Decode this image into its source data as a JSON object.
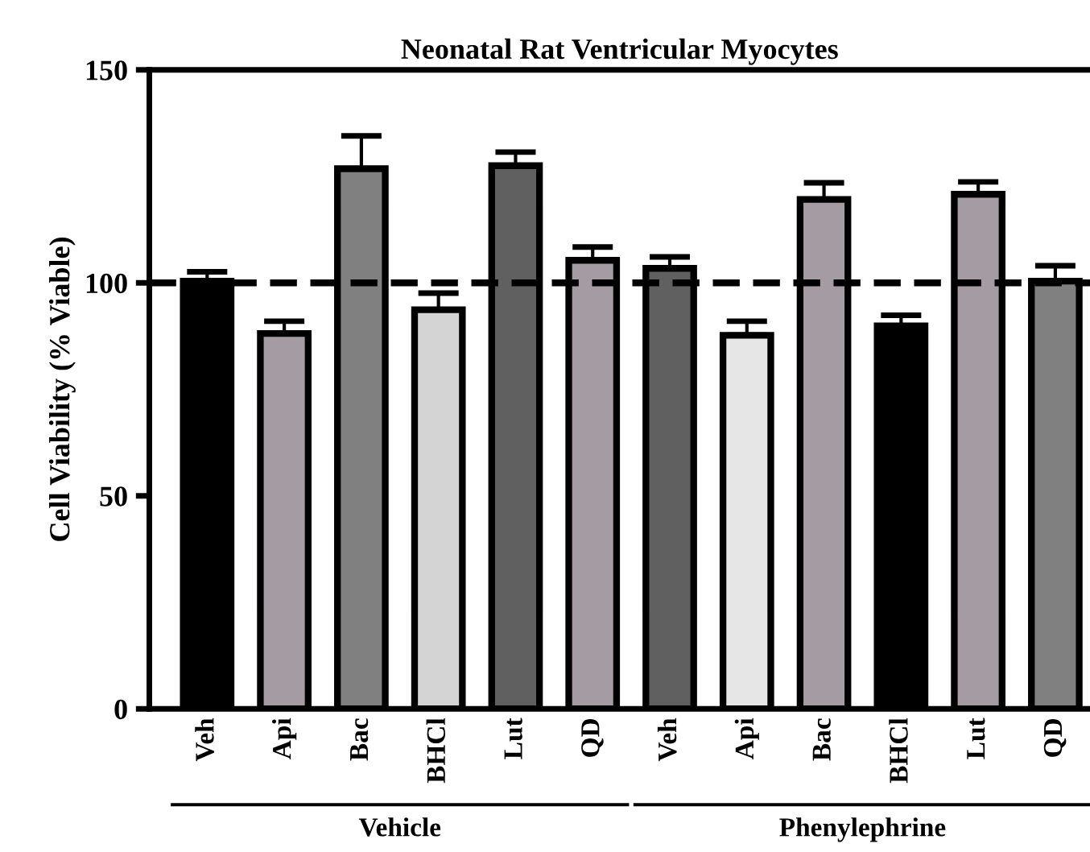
{
  "chart_data": {
    "type": "bar",
    "title": "Neonatal Rat Ventricular Myocytes",
    "ylabel": "Cell Viability (% Viable)",
    "categories": [
      "Veh",
      "Api",
      "Bac",
      "BHCl",
      "Lut",
      "QD",
      "Veh",
      "Api",
      "Bac",
      "BHCl",
      "Lut",
      "QD"
    ],
    "values": [
      100.4,
      88.1,
      126.8,
      93.7,
      127.5,
      105.3,
      103.4,
      87.7,
      119.6,
      89.9,
      120.8,
      100.4
    ],
    "errors": [
      [
        100.4,
        102.6
      ],
      [
        88.1,
        91.0
      ],
      [
        126.8,
        134.5
      ],
      [
        93.7,
        97.6
      ],
      [
        127.5,
        130.7
      ],
      [
        105.3,
        108.4
      ],
      [
        103.4,
        106.1
      ],
      [
        87.7,
        91.0
      ],
      [
        119.6,
        123.5
      ],
      [
        89.9,
        92.4
      ],
      [
        120.8,
        123.7
      ],
      [
        100.4,
        104.0
      ]
    ],
    "colors": [
      "#000000",
      "#a49ca2",
      "#808080",
      "#d4d4d4",
      "#606060",
      "#a49ca2",
      "#606060",
      "#e6e6e6",
      "#a49ca2",
      "#000000",
      "#a49ca2",
      "#808080"
    ],
    "ylim": [
      0,
      150
    ],
    "yticks": [
      0,
      50,
      100,
      150
    ],
    "grid": false,
    "ref_lines": [
      {
        "axis": "y",
        "value": 100,
        "line_style": "dashed",
        "color": "#000000"
      }
    ],
    "annotations": [
      "Vehicle",
      "Phenylephrine"
    ]
  }
}
